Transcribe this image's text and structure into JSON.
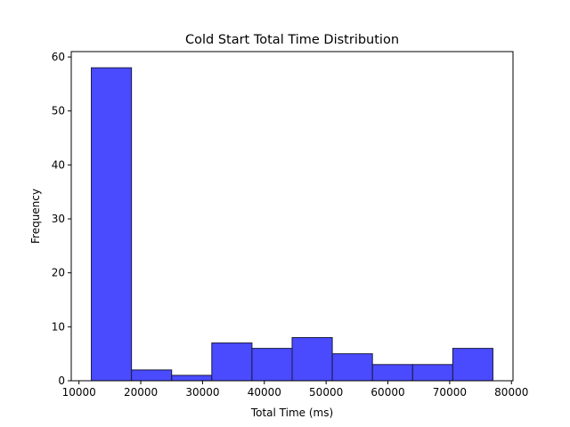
{
  "chart_data": {
    "type": "bar",
    "title": "Cold Start Total Time Distribution",
    "xlabel": "Total Time (ms)",
    "ylabel": "Frequency",
    "bin_edges": [
      12000,
      18500,
      25000,
      31500,
      38000,
      44500,
      51000,
      57500,
      64000,
      70500,
      77000
    ],
    "values": [
      58,
      2,
      1,
      7,
      6,
      8,
      5,
      3,
      3,
      6
    ],
    "xlim": [
      8750,
      80250
    ],
    "ylim": [
      0,
      61
    ],
    "xticks": [
      10000,
      20000,
      30000,
      40000,
      50000,
      60000,
      70000,
      80000
    ],
    "yticks": [
      0,
      10,
      20,
      30,
      40,
      50,
      60
    ],
    "grid": false,
    "legend": "none",
    "bar_color": "#4a4aff",
    "edge_color": "#1a1a40"
  }
}
